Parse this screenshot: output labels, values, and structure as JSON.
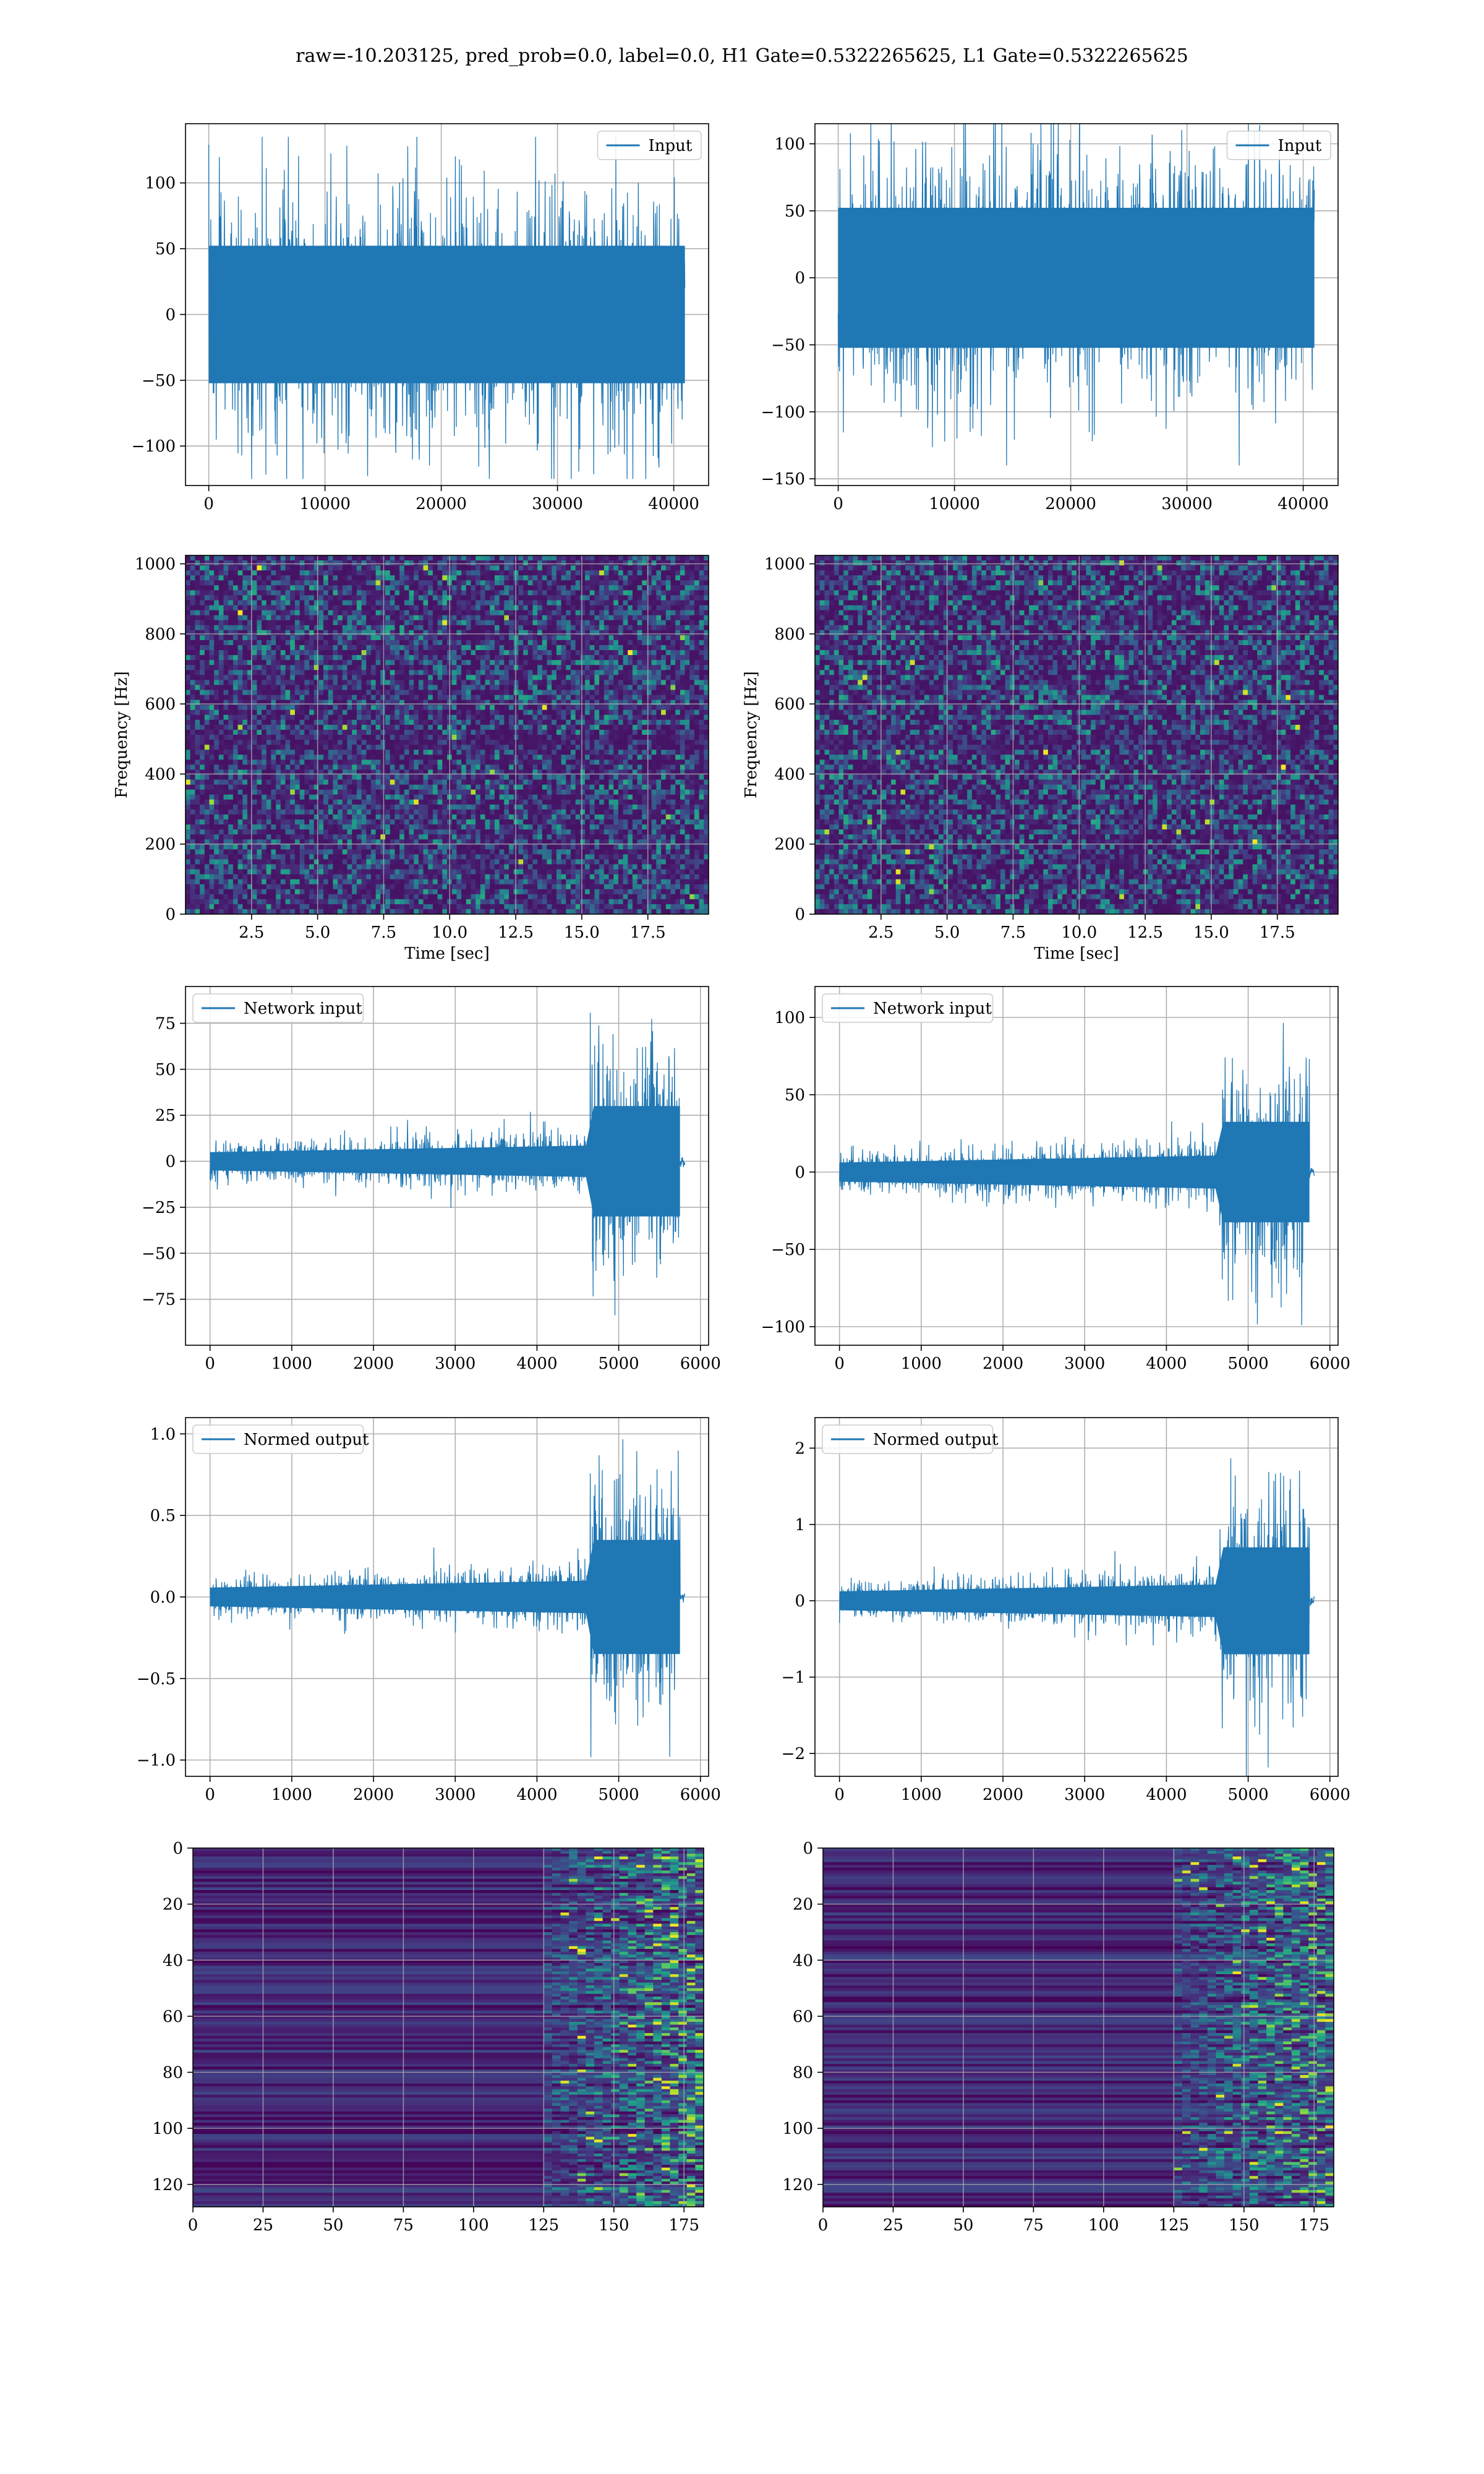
{
  "figure": {
    "title": "raw=-10.203125, pred_prob=0.0, label=0.0, H1 Gate=0.5322265625, L1 Gate=0.5322265625"
  },
  "colors": {
    "line": "#1f77b4",
    "grid": "#b0b0b0",
    "viridis_dark": "#440154",
    "viridis_mid": "#21918c",
    "viridis_bright": "#fde725"
  },
  "chart_data": [
    {
      "id": "input-h1",
      "type": "line",
      "legend": "top-right",
      "series": [
        {
          "name": "Input",
          "amplitude": 55,
          "peak": 135,
          "trough": -125
        }
      ],
      "xlim": [
        -2000,
        43000
      ],
      "ylim": [
        -130,
        145
      ],
      "xticks": [
        0,
        10000,
        20000,
        30000,
        40000
      ],
      "xtick_labels": [
        "0",
        "10000",
        "20000",
        "30000",
        "40000"
      ],
      "yticks": [
        -100,
        -50,
        0,
        50,
        100
      ],
      "ytick_labels": [
        "−100",
        "−50",
        "0",
        "50",
        "100"
      ],
      "x_range": [
        0,
        40960
      ],
      "xlabel": "",
      "ylabel": "",
      "grid": true
    },
    {
      "id": "input-l1",
      "type": "line",
      "legend": "top-right",
      "series": [
        {
          "name": "Input",
          "amplitude": 55,
          "peak": 125,
          "trough": -140
        }
      ],
      "xlim": [
        -2000,
        43000
      ],
      "ylim": [
        -155,
        115
      ],
      "xticks": [
        0,
        10000,
        20000,
        30000,
        40000
      ],
      "xtick_labels": [
        "0",
        "10000",
        "20000",
        "30000",
        "40000"
      ],
      "yticks": [
        -150,
        -100,
        -50,
        0,
        50,
        100
      ],
      "ytick_labels": [
        "−150",
        "−100",
        "−50",
        "0",
        "50",
        "100"
      ],
      "x_range": [
        0,
        40960
      ],
      "xlabel": "",
      "ylabel": "",
      "grid": true
    },
    {
      "id": "spectrogram-h1",
      "type": "heatmap",
      "xlim": [
        0,
        19.8
      ],
      "ylim": [
        0,
        1024
      ],
      "xticks": [
        2.5,
        5.0,
        7.5,
        10.0,
        12.5,
        15.0,
        17.5
      ],
      "xtick_labels": [
        "2.5",
        "5.0",
        "7.5",
        "10.0",
        "12.5",
        "15.0",
        "17.5"
      ],
      "yticks": [
        0,
        200,
        400,
        600,
        800,
        1000
      ],
      "ytick_labels": [
        "0",
        "200",
        "400",
        "600",
        "800",
        "1000"
      ],
      "xlabel": "Time [sec]",
      "ylabel": "Frequency [Hz]",
      "grid": true
    },
    {
      "id": "spectrogram-l1",
      "type": "heatmap",
      "xlim": [
        0,
        19.8
      ],
      "ylim": [
        0,
        1024
      ],
      "xticks": [
        2.5,
        5.0,
        7.5,
        10.0,
        12.5,
        15.0,
        17.5
      ],
      "xtick_labels": [
        "2.5",
        "5.0",
        "7.5",
        "10.0",
        "12.5",
        "15.0",
        "17.5"
      ],
      "yticks": [
        0,
        200,
        400,
        600,
        800,
        1000
      ],
      "ytick_labels": [
        "0",
        "200",
        "400",
        "600",
        "800",
        "1000"
      ],
      "xlabel": "Time [sec]",
      "ylabel": "Frequency [Hz]",
      "grid": true
    },
    {
      "id": "network-input-h1",
      "type": "line",
      "legend": "top-left",
      "series": [
        {
          "name": "Network input",
          "base": 12,
          "burst_start": 4650,
          "burst_end": 5750,
          "burst": 60,
          "end_x": 5810
        }
      ],
      "xlim": [
        -300,
        6100
      ],
      "ylim": [
        -100,
        95
      ],
      "xticks": [
        0,
        1000,
        2000,
        3000,
        4000,
        5000,
        6000
      ],
      "xtick_labels": [
        "0",
        "1000",
        "2000",
        "3000",
        "4000",
        "5000",
        "6000"
      ],
      "yticks": [
        -75,
        -50,
        -25,
        0,
        25,
        50,
        75
      ],
      "ytick_labels": [
        "−75",
        "−50",
        "−25",
        "0",
        "25",
        "50",
        "75"
      ],
      "xlabel": "",
      "ylabel": "",
      "grid": true
    },
    {
      "id": "network-input-l1",
      "type": "line",
      "legend": "top-left",
      "series": [
        {
          "name": "Network input",
          "base": 15,
          "burst_start": 4650,
          "burst_end": 5750,
          "burst": 65,
          "end_x": 5810
        }
      ],
      "xlim": [
        -300,
        6100
      ],
      "ylim": [
        -112,
        120
      ],
      "xticks": [
        0,
        1000,
        2000,
        3000,
        4000,
        5000,
        6000
      ],
      "xtick_labels": [
        "0",
        "1000",
        "2000",
        "3000",
        "4000",
        "5000",
        "6000"
      ],
      "yticks": [
        -100,
        -50,
        0,
        50,
        100
      ],
      "ytick_labels": [
        "−100",
        "−50",
        "0",
        "50",
        "100"
      ],
      "xlabel": "",
      "ylabel": "",
      "grid": true
    },
    {
      "id": "normed-output-h1",
      "type": "line",
      "legend": "top-left",
      "series": [
        {
          "name": "Normed output",
          "base": 0.14,
          "burst_start": 4650,
          "burst_end": 5750,
          "burst": 0.7,
          "end_x": 5810
        }
      ],
      "xlim": [
        -300,
        6100
      ],
      "ylim": [
        -1.1,
        1.1
      ],
      "xticks": [
        0,
        1000,
        2000,
        3000,
        4000,
        5000,
        6000
      ],
      "xtick_labels": [
        "0",
        "1000",
        "2000",
        "3000",
        "4000",
        "5000",
        "6000"
      ],
      "yticks": [
        -1.0,
        -0.5,
        0.0,
        0.5,
        1.0
      ],
      "ytick_labels": [
        "−1.0",
        "−0.5",
        "0.0",
        "0.5",
        "1.0"
      ],
      "xlabel": "",
      "ylabel": "",
      "grid": true
    },
    {
      "id": "normed-output-l1",
      "type": "line",
      "legend": "top-left",
      "series": [
        {
          "name": "Normed output",
          "base": 0.3,
          "burst_start": 4650,
          "burst_end": 5750,
          "burst": 1.4,
          "end_x": 5810
        }
      ],
      "xlim": [
        -300,
        6100
      ],
      "ylim": [
        -2.3,
        2.4
      ],
      "xticks": [
        0,
        1000,
        2000,
        3000,
        4000,
        5000,
        6000
      ],
      "xtick_labels": [
        "0",
        "1000",
        "2000",
        "3000",
        "4000",
        "5000",
        "6000"
      ],
      "yticks": [
        -2,
        -1,
        0,
        1,
        2
      ],
      "ytick_labels": [
        "−2",
        "−1",
        "0",
        "1",
        "2"
      ],
      "xlabel": "",
      "ylabel": "",
      "grid": true
    },
    {
      "id": "features-h1",
      "type": "heatmap",
      "xlim": [
        0,
        182
      ],
      "ylim": [
        128,
        0
      ],
      "xticks": [
        0,
        25,
        50,
        75,
        100,
        125,
        150,
        175
      ],
      "xtick_labels": [
        "0",
        "25",
        "50",
        "75",
        "100",
        "125",
        "150",
        "175"
      ],
      "yticks": [
        0,
        20,
        40,
        60,
        80,
        100,
        120
      ],
      "ytick_labels": [
        "0",
        "20",
        "40",
        "60",
        "80",
        "100",
        "120"
      ],
      "activity_onset": 125,
      "xlabel": "",
      "ylabel": "",
      "grid": true
    },
    {
      "id": "features-l1",
      "type": "heatmap",
      "xlim": [
        0,
        182
      ],
      "ylim": [
        128,
        0
      ],
      "xticks": [
        0,
        25,
        50,
        75,
        100,
        125,
        150,
        175
      ],
      "xtick_labels": [
        "0",
        "25",
        "50",
        "75",
        "100",
        "125",
        "150",
        "175"
      ],
      "yticks": [
        0,
        20,
        40,
        60,
        80,
        100,
        120
      ],
      "ytick_labels": [
        "0",
        "20",
        "40",
        "60",
        "80",
        "100",
        "120"
      ],
      "activity_onset": 125,
      "xlabel": "",
      "ylabel": "",
      "grid": true
    }
  ]
}
